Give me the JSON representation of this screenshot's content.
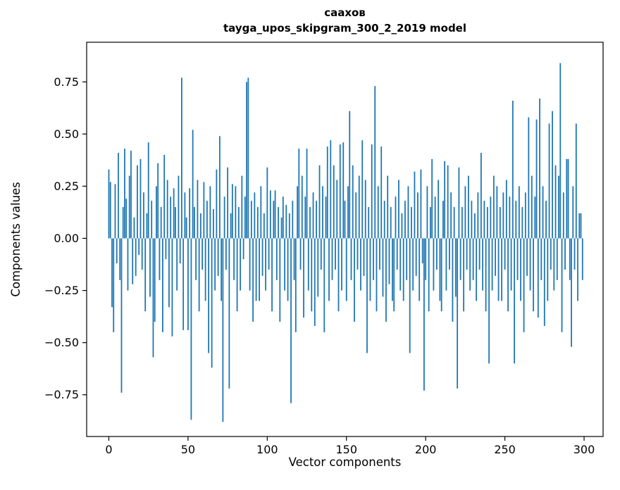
{
  "figure": {
    "title_line1": "саахов",
    "title_line2": "tayga_upos_skipgram_300_2_2019 model"
  },
  "chart_data": {
    "type": "bar",
    "title": "саахов — tayga_upos_skipgram_300_2_2019 model",
    "xlabel": "Vector components",
    "ylabel": "Components values",
    "xlim": [
      -14,
      312
    ],
    "ylim": [
      -0.95,
      0.94
    ],
    "xticks": [
      0,
      50,
      100,
      150,
      200,
      250,
      300
    ],
    "yticks": [
      -0.75,
      -0.5,
      -0.25,
      0.0,
      0.25,
      0.5,
      0.75
    ],
    "bar_color": "#1f77b4",
    "n_components": 300,
    "values": [
      0.33,
      0.27,
      -0.33,
      -0.45,
      0.26,
      -0.12,
      0.41,
      -0.2,
      -0.74,
      0.15,
      0.43,
      0.19,
      -0.25,
      0.3,
      0.42,
      -0.22,
      0.1,
      -0.18,
      0.35,
      -0.08,
      0.38,
      -0.15,
      0.22,
      -0.35,
      0.12,
      0.46,
      -0.28,
      0.18,
      -0.57,
      -0.4,
      0.25,
      0.36,
      -0.2,
      0.15,
      -0.45,
      0.4,
      -0.1,
      0.28,
      -0.33,
      0.2,
      -0.47,
      0.24,
      0.15,
      -0.25,
      0.3,
      -0.12,
      0.77,
      -0.44,
      0.22,
      0.1,
      -0.44,
      0.24,
      -0.87,
      0.52,
      0.15,
      -0.2,
      0.28,
      -0.35,
      0.12,
      -0.15,
      0.27,
      -0.3,
      0.18,
      -0.55,
      0.25,
      -0.62,
      0.14,
      -0.25,
      0.33,
      -0.18,
      0.49,
      -0.3,
      -0.88,
      0.2,
      -0.15,
      0.34,
      -0.72,
      0.12,
      0.26,
      -0.2,
      0.25,
      -0.35,
      0.15,
      -0.25,
      0.3,
      -0.1,
      0.2,
      0.75,
      0.77,
      -0.25,
      0.18,
      -0.4,
      0.22,
      -0.3,
      0.15,
      -0.3,
      0.25,
      -0.18,
      0.12,
      -0.25,
      0.34,
      -0.15,
      0.23,
      -0.35,
      0.18,
      0.23,
      -0.2,
      0.15,
      -0.4,
      0.1,
      0.2,
      -0.25,
      0.16,
      -0.3,
      0.12,
      -0.79,
      0.18,
      -0.2,
      -0.45,
      0.25,
      0.43,
      -0.15,
      0.3,
      -0.38,
      0.2,
      0.43,
      -0.25,
      0.15,
      -0.35,
      0.22,
      -0.42,
      0.18,
      -0.28,
      0.35,
      -0.15,
      0.25,
      -0.45,
      0.2,
      0.44,
      -0.3,
      0.47,
      -0.2,
      0.35,
      -0.15,
      0.28,
      -0.35,
      0.45,
      -0.25,
      0.46,
      0.18,
      -0.3,
      0.25,
      0.61,
      -0.2,
      0.35,
      -0.4,
      0.22,
      -0.15,
      0.3,
      -0.25,
      0.47,
      -0.18,
      0.28,
      -0.55,
      0.15,
      -0.3,
      0.45,
      -0.2,
      0.73,
      -0.35,
      0.25,
      -0.15,
      0.44,
      -0.28,
      0.18,
      -0.4,
      0.3,
      -0.22,
      0.15,
      -0.3,
      -0.35,
      0.2,
      -0.15,
      0.28,
      -0.25,
      0.12,
      -0.3,
      0.18,
      -0.2,
      0.25,
      -0.55,
      0.15,
      -0.25,
      0.32,
      -0.18,
      0.22,
      -0.3,
      0.33,
      -0.12,
      -0.73,
      -0.2,
      0.25,
      -0.35,
      0.15,
      0.38,
      -0.25,
      0.2,
      -0.15,
      0.28,
      -0.3,
      -0.35,
      0.18,
      0.37,
      -0.25,
      0.35,
      -0.15,
      0.22,
      -0.4,
      0.15,
      -0.28,
      -0.72,
      0.34,
      -0.2,
      0.15,
      -0.35,
      0.25,
      -0.15,
      0.3,
      -0.25,
      0.18,
      -0.2,
      0.12,
      -0.3,
      0.22,
      -0.15,
      0.41,
      -0.25,
      0.18,
      -0.35,
      0.15,
      -0.6,
      0.2,
      -0.25,
      0.3,
      -0.18,
      0.25,
      -0.3,
      0.15,
      -0.3,
      0.22,
      -0.15,
      0.28,
      -0.35,
      0.2,
      -0.25,
      0.66,
      -0.6,
      0.18,
      -0.2,
      0.25,
      -0.3,
      0.15,
      -0.45,
      0.22,
      -0.18,
      0.58,
      -0.25,
      0.3,
      -0.35,
      0.2,
      0.57,
      -0.38,
      0.67,
      -0.2,
      0.25,
      -0.42,
      0.18,
      -0.3,
      0.55,
      -0.15,
      0.61,
      -0.25,
      0.35,
      -0.2,
      0.3,
      0.84,
      -0.45,
      0.22,
      -0.15,
      0.38,
      0.38,
      -0.2,
      -0.52,
      0.25,
      -0.15,
      0.55,
      -0.3,
      0.12,
      0.12,
      -0.2
    ]
  }
}
